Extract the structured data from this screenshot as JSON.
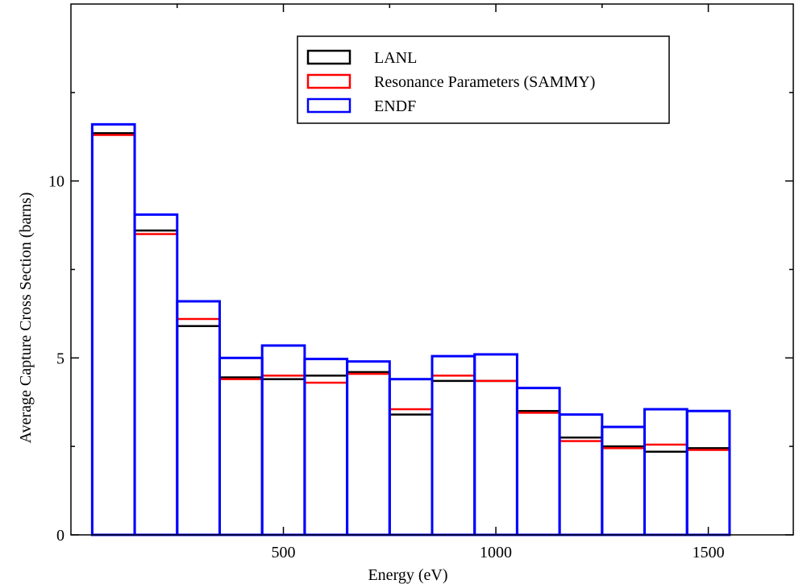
{
  "chart_data": {
    "type": "bar",
    "subtype": "step-histogram",
    "title": "",
    "xlabel": "Energy (eV)",
    "ylabel": "Average Capture Cross Section (barns)",
    "xlim": [
      0,
      1700
    ],
    "ylim": [
      0,
      15
    ],
    "x_ticks": [
      500,
      1000,
      1500
    ],
    "y_ticks": [
      0,
      5,
      10
    ],
    "x_minor_step": 250,
    "y_minor_step": 2.5,
    "grid": false,
    "legend_position": "top-center",
    "bin_edges": [
      50,
      150,
      250,
      350,
      450,
      550,
      650,
      750,
      850,
      950,
      1050,
      1150,
      1250,
      1350,
      1450,
      1550
    ],
    "series": [
      {
        "name": "LANL",
        "color": "#000000",
        "values": [
          11.35,
          8.6,
          5.9,
          4.45,
          4.4,
          4.5,
          4.6,
          3.4,
          4.35,
          4.35,
          3.5,
          2.75,
          2.5,
          2.35,
          2.45
        ]
      },
      {
        "name": "Resonance Parameters (SAMMY)",
        "color": "#ff0000",
        "values": [
          11.3,
          8.5,
          6.1,
          4.4,
          4.5,
          4.3,
          4.55,
          3.55,
          4.5,
          4.35,
          3.45,
          2.65,
          2.45,
          2.55,
          2.4
        ]
      },
      {
        "name": "ENDF",
        "color": "#0000ff",
        "values": [
          11.6,
          9.05,
          6.6,
          5.0,
          5.35,
          4.97,
          4.9,
          4.4,
          5.05,
          5.1,
          4.15,
          3.4,
          3.05,
          3.55,
          3.5
        ]
      }
    ]
  }
}
